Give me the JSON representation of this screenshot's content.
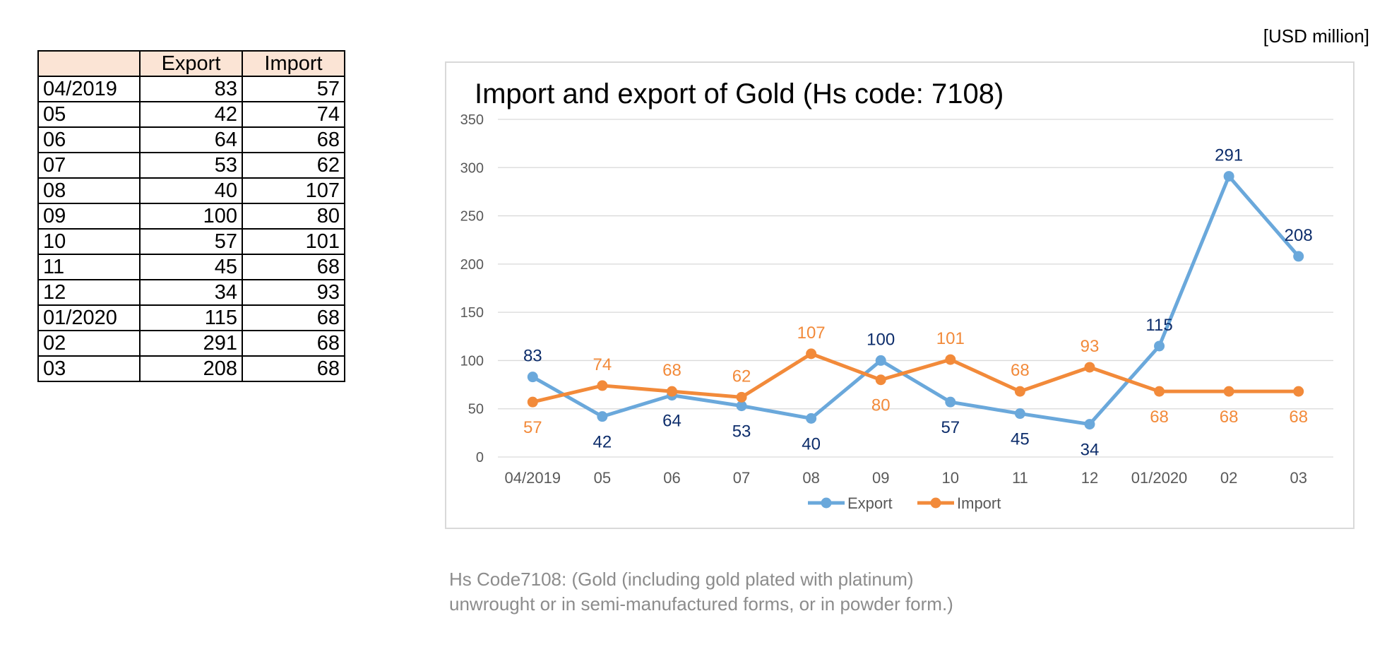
{
  "unit_label": "[USD million]",
  "table": {
    "headers": [
      "",
      "Export",
      "Import"
    ],
    "rows": [
      [
        "04/2019",
        "83",
        "57"
      ],
      [
        "05",
        "42",
        "74"
      ],
      [
        "06",
        "64",
        "68"
      ],
      [
        "07",
        "53",
        "62"
      ],
      [
        "08",
        "40",
        "107"
      ],
      [
        "09",
        "100",
        "80"
      ],
      [
        "10",
        "57",
        "101"
      ],
      [
        "11",
        "45",
        "68"
      ],
      [
        "12",
        "34",
        "93"
      ],
      [
        "01/2020",
        "115",
        "68"
      ],
      [
        "02",
        "291",
        "68"
      ],
      [
        "03",
        "208",
        "68"
      ]
    ]
  },
  "chart_data": {
    "type": "line",
    "title": "Import and export of Gold (Hs code: 7108)",
    "categories": [
      "04/2019",
      "05",
      "06",
      "07",
      "08",
      "09",
      "10",
      "11",
      "12",
      "01/2020",
      "02",
      "03"
    ],
    "series": [
      {
        "name": "Export",
        "color": "#6aa8db",
        "label_color": "#0d2d6b",
        "values": [
          83,
          42,
          64,
          53,
          40,
          100,
          57,
          45,
          34,
          115,
          291,
          208
        ]
      },
      {
        "name": "Import",
        "color": "#f28a3a",
        "label_color": "#f28a3a",
        "values": [
          57,
          74,
          68,
          62,
          107,
          80,
          101,
          68,
          93,
          68,
          68,
          68
        ]
      }
    ],
    "ylim": [
      0,
      350
    ],
    "yticks": [
      0,
      50,
      100,
      150,
      200,
      250,
      300,
      350
    ],
    "grid": true,
    "legend": "bottom"
  },
  "footnote": {
    "line1": "Hs Code7108: (Gold (including gold plated with platinum)",
    "line2": "unwrought or in semi-manufactured forms, or in powder form.)"
  }
}
